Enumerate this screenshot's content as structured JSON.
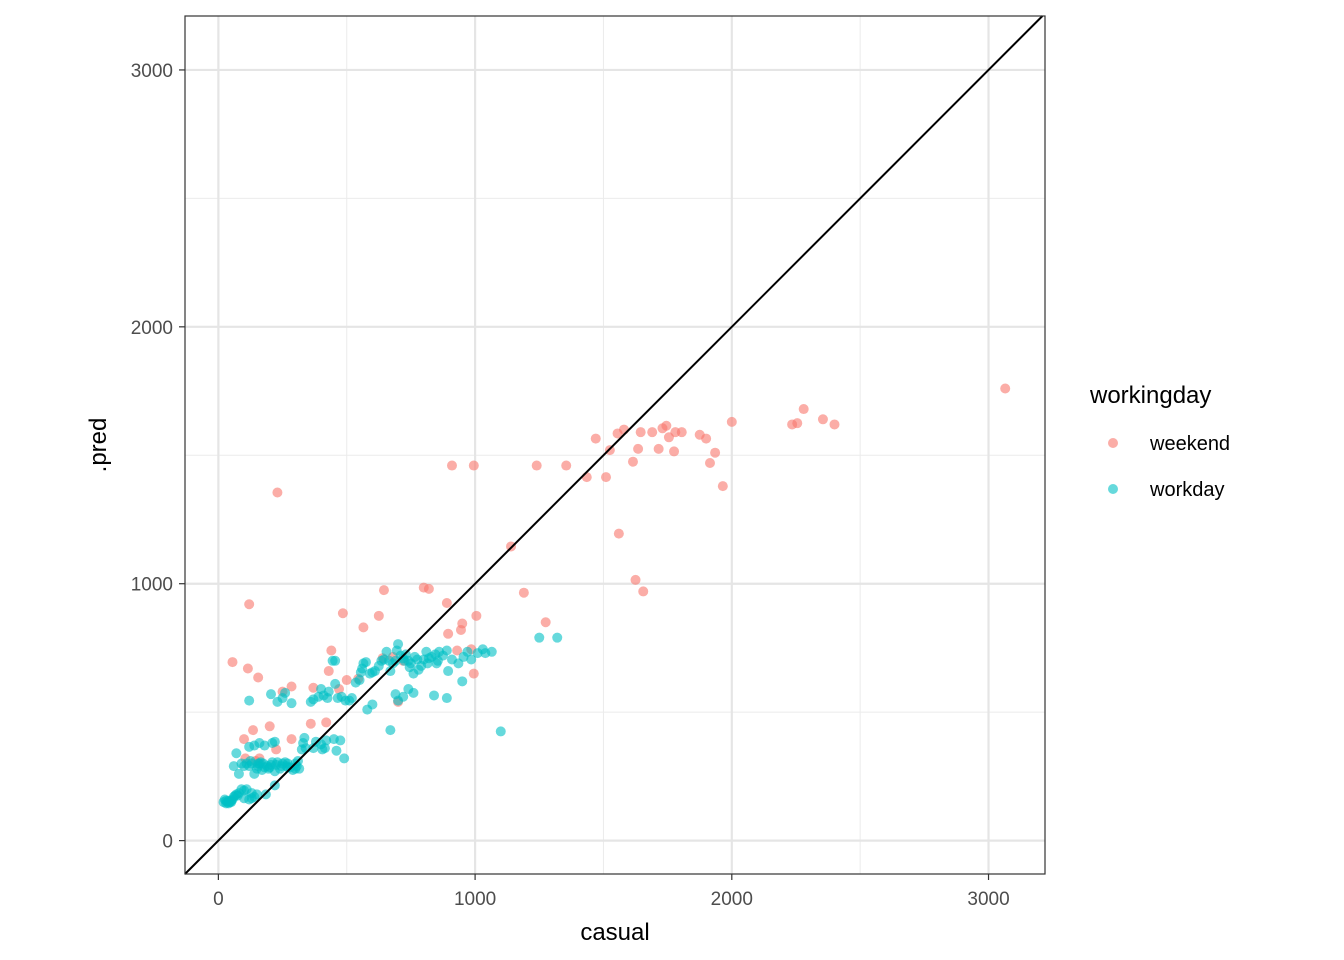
{
  "chart_data": {
    "type": "scatter",
    "title": "",
    "xlabel": "casual",
    "ylabel": ".pred",
    "xlim": [
      -130,
      3220
    ],
    "ylim": [
      -130,
      3210
    ],
    "x_ticks": [
      0,
      1000,
      2000,
      3000
    ],
    "y_ticks": [
      0,
      1000,
      2000,
      3000
    ],
    "x_tick_labels": [
      "0",
      "1000",
      "2000",
      "3000"
    ],
    "y_tick_labels": [
      "0",
      "1000",
      "2000",
      "3000"
    ],
    "grid": true,
    "reference_line": {
      "type": "identity",
      "slope": 1,
      "intercept": 0,
      "color": "#000000"
    },
    "legend": {
      "title": "workingday",
      "position": "right",
      "entries": [
        {
          "label": "weekend",
          "color": "#F8766D"
        },
        {
          "label": "workday",
          "color": "#00BFC4"
        }
      ]
    },
    "series": [
      {
        "name": "weekend",
        "color": "#F8766D",
        "points": [
          [
            3065,
            1760
          ],
          [
            2400,
            1620
          ],
          [
            2355,
            1640
          ],
          [
            2280,
            1680
          ],
          [
            2255,
            1625
          ],
          [
            2235,
            1620
          ],
          [
            2000,
            1630
          ],
          [
            1965,
            1380
          ],
          [
            1935,
            1510
          ],
          [
            1915,
            1470
          ],
          [
            1900,
            1565
          ],
          [
            1875,
            1580
          ],
          [
            1805,
            1590
          ],
          [
            1780,
            1590
          ],
          [
            1775,
            1515
          ],
          [
            1755,
            1570
          ],
          [
            1745,
            1615
          ],
          [
            1730,
            1605
          ],
          [
            1715,
            1525
          ],
          [
            1690,
            1590
          ],
          [
            1645,
            1590
          ],
          [
            1635,
            1525
          ],
          [
            1615,
            1475
          ],
          [
            1580,
            1600
          ],
          [
            1555,
            1585
          ],
          [
            1560,
            1195
          ],
          [
            1525,
            1520
          ],
          [
            1510,
            1415
          ],
          [
            1470,
            1565
          ],
          [
            1435,
            1415
          ],
          [
            1355,
            1460
          ],
          [
            1240,
            1460
          ],
          [
            1190,
            965
          ],
          [
            1275,
            850
          ],
          [
            1140,
            1145
          ],
          [
            995,
            1460
          ],
          [
            910,
            1460
          ],
          [
            1625,
            1015
          ],
          [
            1655,
            970
          ],
          [
            1005,
            875
          ],
          [
            950,
            845
          ],
          [
            945,
            820
          ],
          [
            890,
            925
          ],
          [
            895,
            805
          ],
          [
            820,
            980
          ],
          [
            800,
            985
          ],
          [
            645,
            975
          ],
          [
            625,
            875
          ],
          [
            565,
            830
          ],
          [
            485,
            885
          ],
          [
            440,
            740
          ],
          [
            430,
            660
          ],
          [
            470,
            590
          ],
          [
            500,
            625
          ],
          [
            545,
            630
          ],
          [
            370,
            595
          ],
          [
            285,
            600
          ],
          [
            420,
            460
          ],
          [
            360,
            455
          ],
          [
            250,
            580
          ],
          [
            200,
            445
          ],
          [
            135,
            430
          ],
          [
            55,
            695
          ],
          [
            120,
            920
          ],
          [
            115,
            670
          ],
          [
            155,
            635
          ],
          [
            230,
            1355
          ],
          [
            100,
            395
          ],
          [
            105,
            320
          ],
          [
            145,
            310
          ],
          [
            160,
            320
          ],
          [
            225,
            355
          ],
          [
            285,
            395
          ],
          [
            985,
            745
          ],
          [
            995,
            650
          ],
          [
            700,
            540
          ],
          [
            930,
            740
          ],
          [
            640,
            710
          ],
          [
            680,
            715
          ],
          [
            720,
            700
          ]
        ]
      },
      {
        "name": "workday",
        "color": "#00BFC4",
        "points": [
          [
            1320,
            790
          ],
          [
            1250,
            790
          ],
          [
            1100,
            425
          ],
          [
            1065,
            735
          ],
          [
            1040,
            730
          ],
          [
            1030,
            745
          ],
          [
            1010,
            730
          ],
          [
            985,
            705
          ],
          [
            970,
            735
          ],
          [
            955,
            715
          ],
          [
            950,
            620
          ],
          [
            935,
            690
          ],
          [
            910,
            705
          ],
          [
            895,
            660
          ],
          [
            890,
            740
          ],
          [
            875,
            720
          ],
          [
            860,
            735
          ],
          [
            855,
            700
          ],
          [
            850,
            690
          ],
          [
            845,
            725
          ],
          [
            830,
            715
          ],
          [
            820,
            710
          ],
          [
            815,
            690
          ],
          [
            810,
            735
          ],
          [
            800,
            705
          ],
          [
            790,
            680
          ],
          [
            775,
            705
          ],
          [
            765,
            715
          ],
          [
            750,
            690
          ],
          [
            745,
            675
          ],
          [
            740,
            700
          ],
          [
            730,
            725
          ],
          [
            725,
            700
          ],
          [
            720,
            710
          ],
          [
            710,
            720
          ],
          [
            700,
            765
          ],
          [
            695,
            740
          ],
          [
            690,
            700
          ],
          [
            680,
            690
          ],
          [
            670,
            660
          ],
          [
            665,
            700
          ],
          [
            655,
            735
          ],
          [
            645,
            705
          ],
          [
            635,
            700
          ],
          [
            625,
            680
          ],
          [
            610,
            660
          ],
          [
            600,
            655
          ],
          [
            590,
            650
          ],
          [
            575,
            695
          ],
          [
            565,
            690
          ],
          [
            560,
            670
          ],
          [
            555,
            655
          ],
          [
            550,
            625
          ],
          [
            535,
            615
          ],
          [
            520,
            555
          ],
          [
            495,
            545
          ],
          [
            480,
            560
          ],
          [
            465,
            555
          ],
          [
            455,
            610
          ],
          [
            455,
            700
          ],
          [
            445,
            700
          ],
          [
            430,
            580
          ],
          [
            425,
            555
          ],
          [
            410,
            565
          ],
          [
            400,
            590
          ],
          [
            390,
            560
          ],
          [
            370,
            550
          ],
          [
            360,
            540
          ],
          [
            840,
            565
          ],
          [
            890,
            555
          ],
          [
            760,
            575
          ],
          [
            740,
            590
          ],
          [
            720,
            560
          ],
          [
            700,
            545
          ],
          [
            690,
            570
          ],
          [
            760,
            650
          ],
          [
            780,
            665
          ],
          [
            670,
            430
          ],
          [
            600,
            530
          ],
          [
            580,
            510
          ],
          [
            510,
            545
          ],
          [
            475,
            390
          ],
          [
            490,
            320
          ],
          [
            460,
            350
          ],
          [
            450,
            395
          ],
          [
            420,
            390
          ],
          [
            415,
            360
          ],
          [
            405,
            355
          ],
          [
            400,
            375
          ],
          [
            380,
            385
          ],
          [
            370,
            360
          ],
          [
            340,
            360
          ],
          [
            335,
            400
          ],
          [
            330,
            380
          ],
          [
            325,
            355
          ],
          [
            315,
            280
          ],
          [
            305,
            290
          ],
          [
            300,
            280
          ],
          [
            290,
            275
          ],
          [
            280,
            285
          ],
          [
            270,
            300
          ],
          [
            260,
            305
          ],
          [
            250,
            300
          ],
          [
            245,
            290
          ],
          [
            240,
            280
          ],
          [
            230,
            305
          ],
          [
            225,
            295
          ],
          [
            220,
            270
          ],
          [
            210,
            305
          ],
          [
            205,
            295
          ],
          [
            200,
            285
          ],
          [
            195,
            280
          ],
          [
            190,
            290
          ],
          [
            180,
            285
          ],
          [
            170,
            275
          ],
          [
            165,
            305
          ],
          [
            160,
            300
          ],
          [
            155,
            290
          ],
          [
            150,
            280
          ],
          [
            140,
            260
          ],
          [
            130,
            300
          ],
          [
            125,
            310
          ],
          [
            120,
            290
          ],
          [
            110,
            300
          ],
          [
            100,
            290
          ],
          [
            90,
            300
          ],
          [
            80,
            260
          ],
          [
            70,
            340
          ],
          [
            60,
            290
          ],
          [
            210,
            380
          ],
          [
            220,
            385
          ],
          [
            180,
            370
          ],
          [
            160,
            380
          ],
          [
            140,
            370
          ],
          [
            120,
            365
          ],
          [
            230,
            540
          ],
          [
            250,
            555
          ],
          [
            260,
            575
          ],
          [
            285,
            535
          ],
          [
            205,
            570
          ],
          [
            120,
            545
          ],
          [
            90,
            200
          ],
          [
            100,
            195
          ],
          [
            110,
            200
          ],
          [
            130,
            185
          ],
          [
            140,
            170
          ],
          [
            150,
            180
          ],
          [
            185,
            180
          ],
          [
            220,
            215
          ],
          [
            80,
            185
          ],
          [
            75,
            175
          ],
          [
            70,
            180
          ],
          [
            65,
            175
          ],
          [
            60,
            170
          ],
          [
            55,
            160
          ],
          [
            50,
            155
          ],
          [
            45,
            150
          ],
          [
            40,
            155
          ],
          [
            35,
            150
          ],
          [
            30,
            155
          ],
          [
            20,
            150
          ],
          [
            25,
            160
          ],
          [
            30,
            145
          ],
          [
            40,
            145
          ],
          [
            50,
            150
          ],
          [
            100,
            165
          ],
          [
            120,
            160
          ],
          [
            130,
            165
          ],
          [
            270,
            285
          ],
          [
            265,
            290
          ],
          [
            300,
            300
          ],
          [
            310,
            310
          ],
          [
            155,
            300
          ],
          [
            175,
            300
          ]
        ]
      }
    ]
  }
}
